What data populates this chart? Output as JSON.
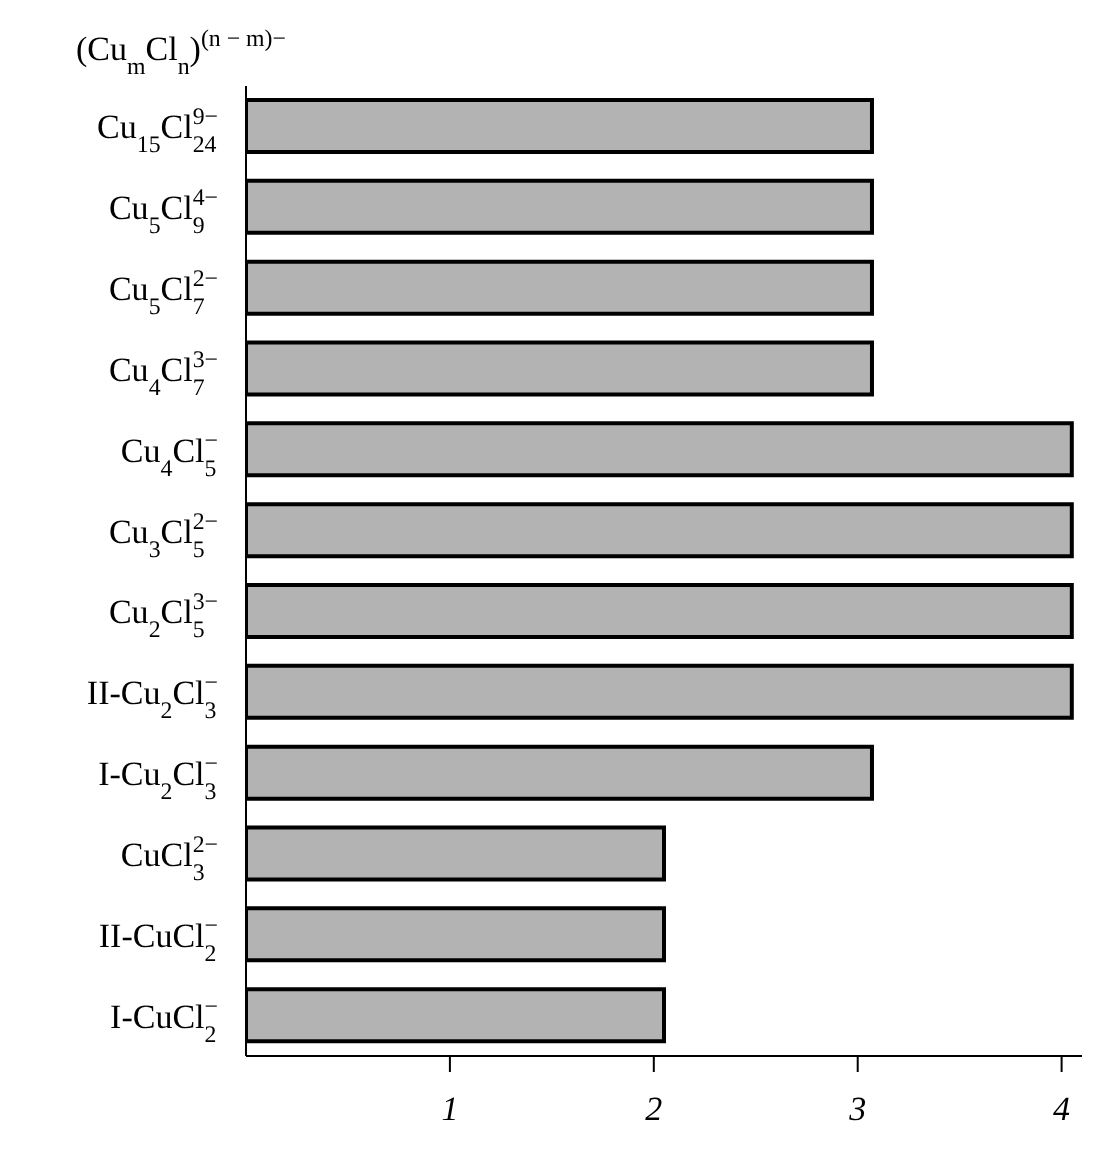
{
  "chart_data": {
    "type": "bar",
    "orientation": "horizontal",
    "title": "(Cu$_{m}$Cl$_{n}$)$^{(n − m)−}$",
    "categories": [
      "Cu$_{15}$Cl$_{24}$$^{9−}$",
      "Cu$_{5}$Cl$_{9}$$^{4−}$",
      "Cu$_{5}$Cl$_{7}$$^{2−}$",
      "Cu$_{4}$Cl$_{7}$$^{3−}$",
      "Cu$_{4}$Cl$_{5}$$^{−}$",
      "Cu$_{3}$Cl$_{5}$$^{2−}$",
      "Cu$_{2}$Cl$_{5}$$^{3−}$",
      "II-Cu$_{2}$Cl$_{3}$$^{−}$",
      "I-Cu$_{2}$Cl$_{3}$$^{−}$",
      "CuCl$_{3}$$^{2−}$",
      "II-CuCl$_{2}$$^{−}$",
      "I-CuCl$_{2}$$^{−}$"
    ],
    "values": [
      3.07,
      3.07,
      3.07,
      3.07,
      4.05,
      4.05,
      4.05,
      4.05,
      3.07,
      2.05,
      2.05,
      2.05
    ],
    "color": "#b3b3b3",
    "xlim": [
      0,
      4.1
    ],
    "xticks": [
      1,
      2,
      3,
      4
    ]
  }
}
